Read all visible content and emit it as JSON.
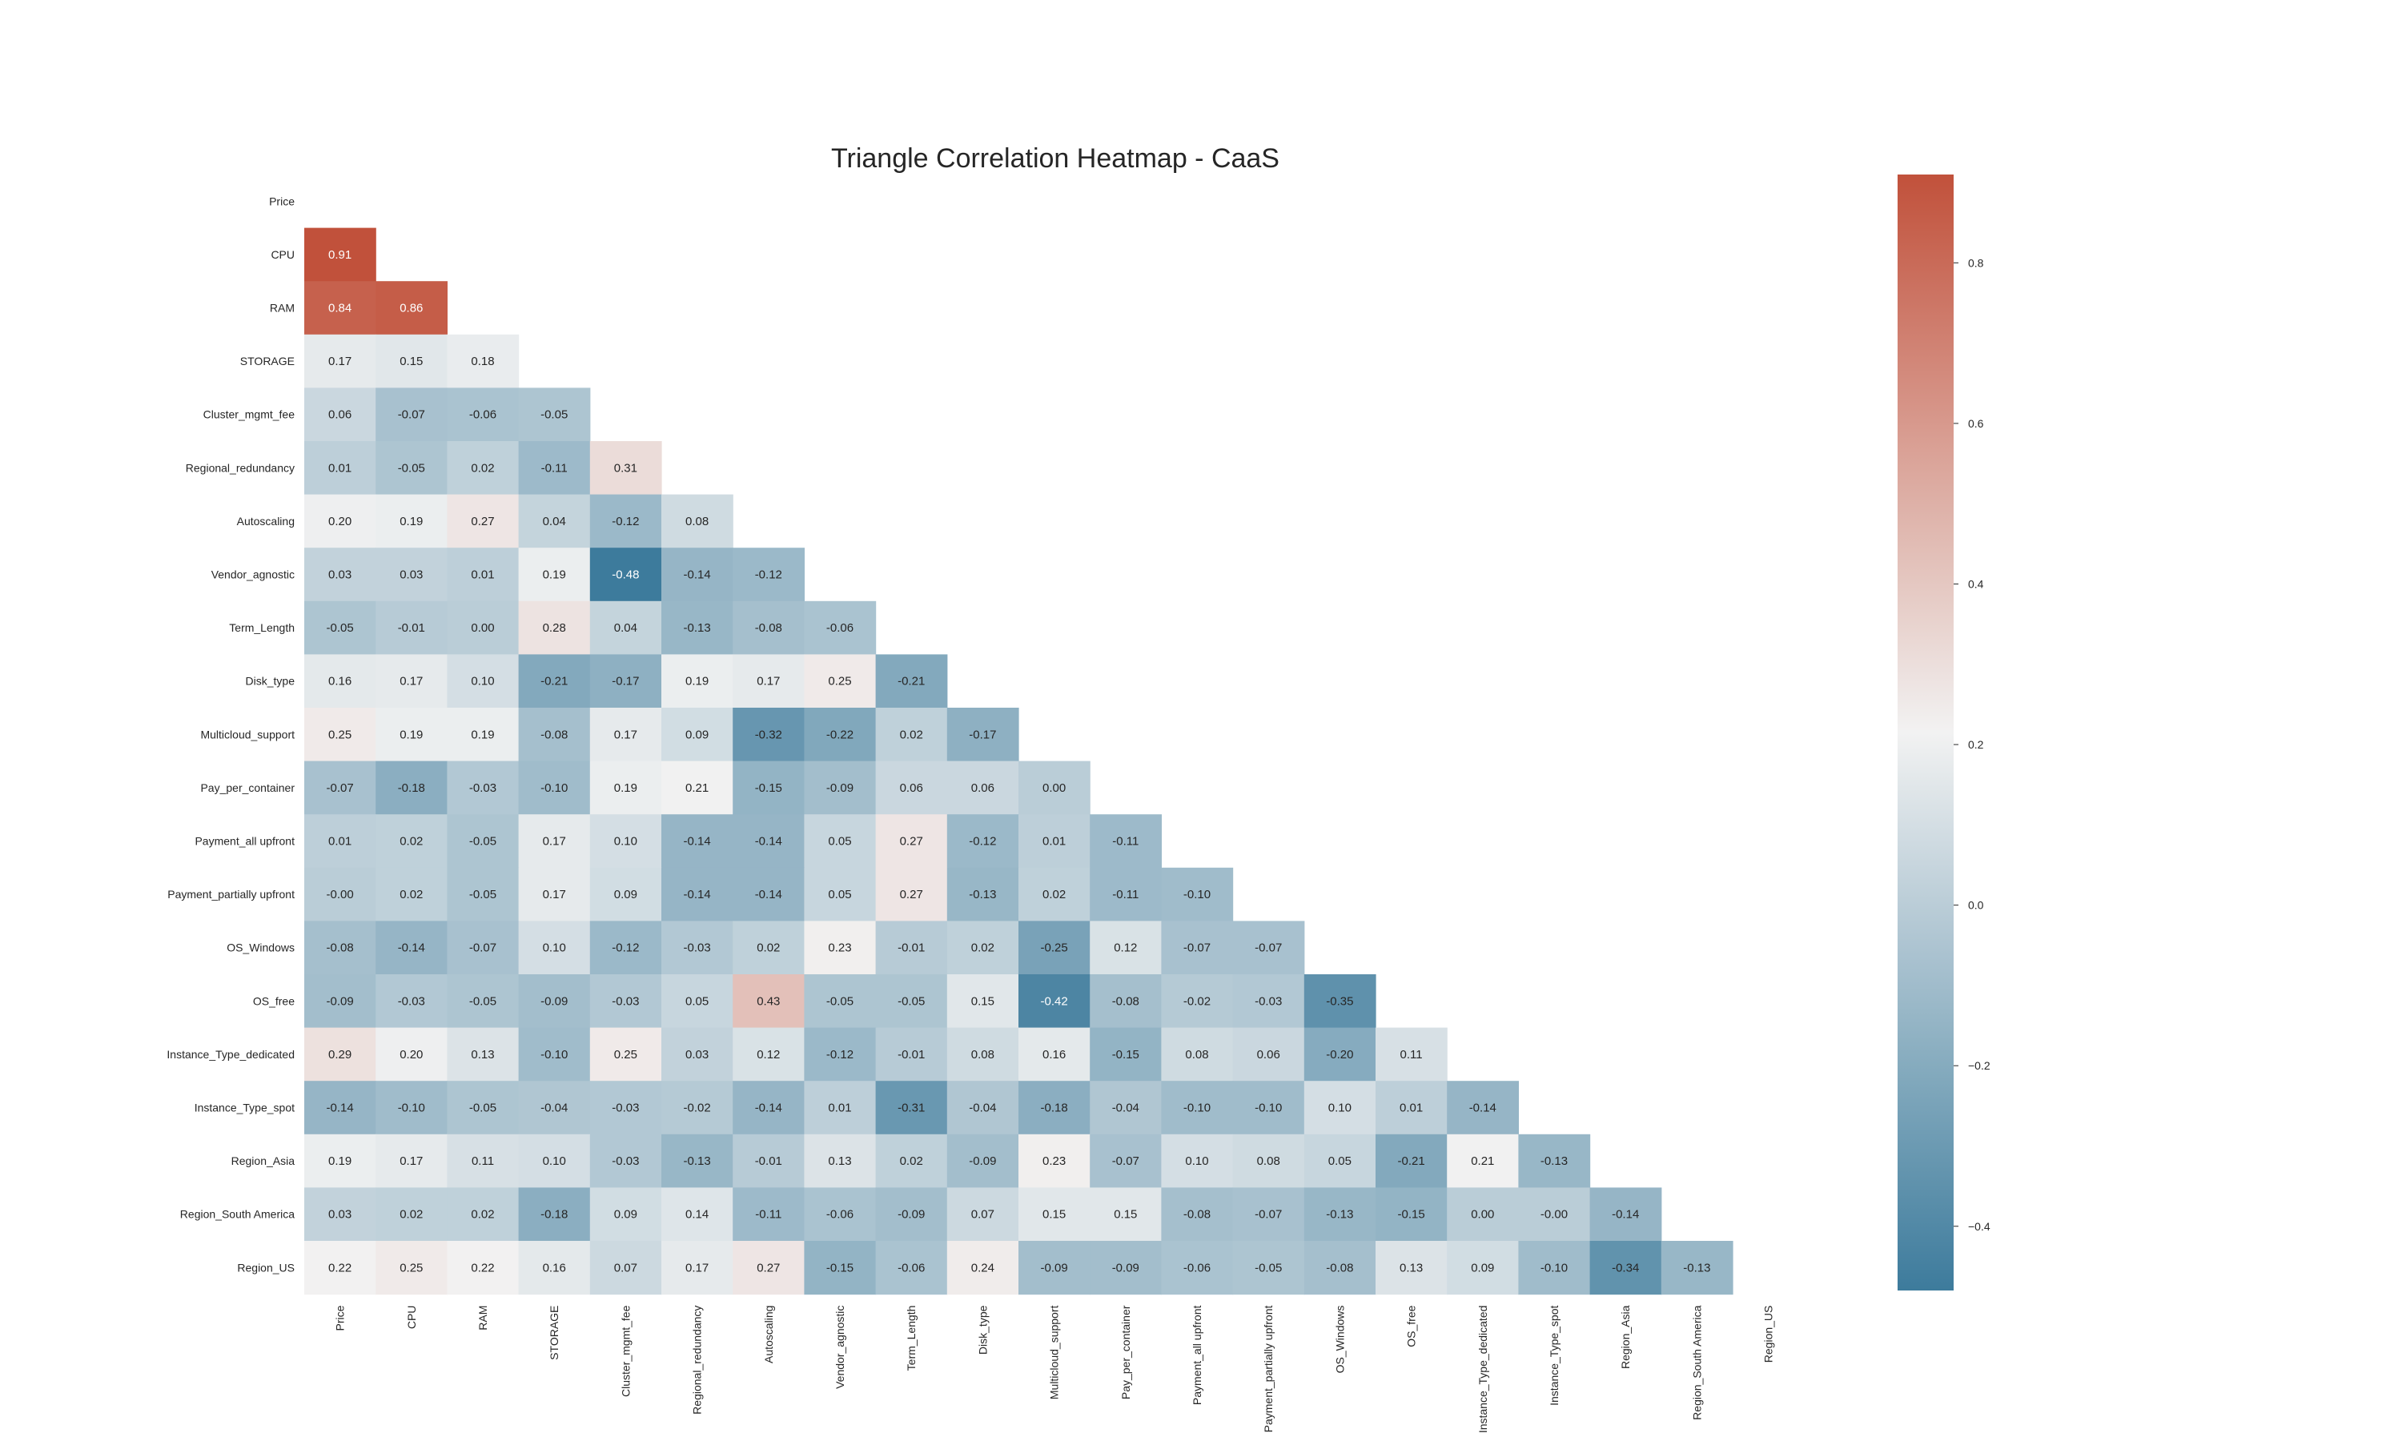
{
  "chart_data": {
    "type": "heatmap",
    "title": "Triangle Correlation Heatmap - CaaS",
    "variables": [
      "Price",
      "CPU",
      "RAM",
      "STORAGE",
      "Cluster_mgmt_fee",
      "Regional_redundancy",
      "Autoscaling",
      "Vendor_agnostic",
      "Term_Length",
      "Disk_type",
      "Multicloud_support",
      "Pay_per_container",
      "Payment_all upfront",
      "Payment_partially upfront",
      "OS_Windows",
      "OS_free",
      "Instance_Type_dedicated",
      "Instance_Type_spot",
      "Region_Asia",
      "Region_South America",
      "Region_US"
    ],
    "mask": "upper triangle including diagonal",
    "annotation_format": "0.00",
    "lower_triangle": [
      [],
      [
        0.91
      ],
      [
        0.84,
        0.86
      ],
      [
        0.17,
        0.15,
        0.18
      ],
      [
        0.06,
        -0.07,
        -0.06,
        -0.05
      ],
      [
        0.01,
        -0.05,
        0.02,
        -0.11,
        0.31
      ],
      [
        0.2,
        0.19,
        0.27,
        0.04,
        -0.12,
        0.08
      ],
      [
        0.03,
        0.03,
        0.01,
        0.19,
        -0.48,
        -0.14,
        -0.12
      ],
      [
        -0.05,
        -0.01,
        0.0,
        0.28,
        0.04,
        -0.13,
        -0.08,
        -0.06
      ],
      [
        0.16,
        0.17,
        0.1,
        -0.21,
        -0.17,
        0.19,
        0.17,
        0.25,
        -0.21
      ],
      [
        0.25,
        0.19,
        0.19,
        -0.08,
        0.17,
        0.09,
        -0.32,
        -0.22,
        0.02,
        -0.17
      ],
      [
        -0.07,
        -0.18,
        -0.03,
        -0.1,
        0.19,
        0.21,
        -0.15,
        -0.09,
        0.06,
        0.06,
        0.0
      ],
      [
        0.01,
        0.02,
        -0.05,
        0.17,
        0.1,
        -0.14,
        -0.14,
        0.05,
        0.27,
        -0.12,
        0.01,
        -0.11
      ],
      [
        -0.0,
        0.02,
        -0.05,
        0.17,
        0.09,
        -0.14,
        -0.14,
        0.05,
        0.27,
        -0.13,
        0.02,
        -0.11,
        -0.1
      ],
      [
        -0.08,
        -0.14,
        -0.07,
        0.1,
        -0.12,
        -0.03,
        0.02,
        0.23,
        -0.01,
        0.02,
        -0.25,
        0.12,
        -0.07,
        -0.07
      ],
      [
        -0.09,
        -0.03,
        -0.05,
        -0.09,
        -0.03,
        0.05,
        0.43,
        -0.05,
        -0.05,
        0.15,
        -0.42,
        -0.08,
        -0.02,
        -0.03,
        -0.35
      ],
      [
        0.29,
        0.2,
        0.13,
        -0.1,
        0.25,
        0.03,
        0.12,
        -0.12,
        -0.01,
        0.08,
        0.16,
        -0.15,
        0.08,
        0.06,
        -0.2,
        0.11
      ],
      [
        -0.14,
        -0.1,
        -0.05,
        -0.04,
        -0.03,
        -0.02,
        -0.14,
        0.01,
        -0.31,
        -0.04,
        -0.18,
        -0.04,
        -0.1,
        -0.1,
        0.1,
        0.01,
        -0.14
      ],
      [
        0.19,
        0.17,
        0.11,
        0.1,
        -0.03,
        -0.13,
        -0.01,
        0.13,
        0.02,
        -0.09,
        0.23,
        -0.07,
        0.1,
        0.08,
        0.05,
        -0.21,
        0.21,
        -0.13
      ],
      [
        0.03,
        0.02,
        0.02,
        -0.18,
        0.09,
        0.14,
        -0.11,
        -0.06,
        -0.09,
        0.07,
        0.15,
        0.15,
        -0.08,
        -0.07,
        -0.13,
        -0.15,
        0.0,
        -0.0,
        -0.14
      ],
      [
        0.22,
        0.25,
        0.22,
        0.16,
        0.07,
        0.17,
        0.27,
        -0.15,
        -0.06,
        0.24,
        -0.09,
        -0.09,
        -0.06,
        -0.05,
        -0.08,
        0.13,
        0.09,
        -0.1,
        -0.34,
        -0.13
      ]
    ],
    "colorbar": {
      "range": [
        -0.48,
        0.91
      ],
      "ticks": [
        -0.4,
        -0.2,
        0.0,
        0.2,
        0.4,
        0.6,
        0.8
      ],
      "tick_labels": [
        "−0.4",
        "−0.2",
        "0.0",
        "0.2",
        "0.4",
        "0.6",
        "0.8"
      ],
      "colormap": "diverging blue-white-red",
      "low_color": "#3d7b9c",
      "mid_color": "#f2f2f2",
      "high_color": "#c1513b"
    }
  }
}
